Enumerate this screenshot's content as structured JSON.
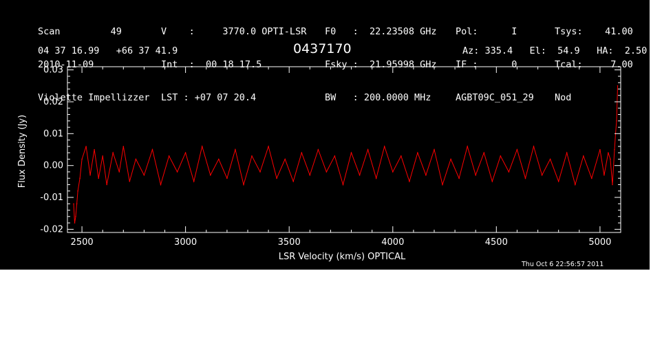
{
  "header": {
    "col1": [
      "Scan         49",
      "2010-11-09",
      "Violette Impellizzer"
    ],
    "col2": [
      "V    :     3770.0 OPTI-LSR",
      "Int  :  00 18 17.5",
      "LST : +07 07 20.4"
    ],
    "col3": [
      "F0   :  22.23508 GHz",
      "Fsky :  21.95998 GHz",
      "BW   : 200.0000 MHz"
    ],
    "col4": [
      "Pol:      I",
      "IF :      0",
      "AGBT09C_051_29"
    ],
    "col5": [
      "Tsys:    41.00",
      "Tcal:     7.00",
      "Nod"
    ],
    "coords": "04 37 16.99   +66 37 41.9",
    "source": "0437170",
    "azel": "Az: 335.4   El:  54.9   HA:  2.50",
    "timestamp": "Thu Oct  6 22:56:57 2011"
  },
  "colors": {
    "background": "#000000",
    "foreground": "#ffffff",
    "series": "#ff0000"
  },
  "chart_data": {
    "type": "line",
    "title": "0437170",
    "xlabel": "LSR Velocity (km/s) OPTICAL",
    "ylabel": "Flux Density (Jy)",
    "xlim": [
      2430,
      5100
    ],
    "ylim": [
      -0.021,
      0.031
    ],
    "xticks": [
      2500,
      3000,
      3500,
      4000,
      4500,
      5000
    ],
    "yticks": [
      -0.02,
      -0.01,
      0.0,
      0.01,
      0.02,
      0.03
    ],
    "xtick_labels": [
      "2500",
      "3000",
      "3500",
      "4000",
      "4500",
      "5000"
    ],
    "ytick_labels": [
      "-0.02",
      "-0.01",
      "0.00",
      "0.01",
      "0.02",
      "0.03"
    ],
    "grid": false,
    "series": [
      {
        "x": [
          2460,
          2465,
          2470,
          2475,
          2480,
          2490,
          2500,
          2520,
          2540,
          2560,
          2580,
          2600,
          2620,
          2650,
          2680,
          2700,
          2730,
          2760,
          2800,
          2840,
          2880,
          2920,
          2960,
          3000,
          3040,
          3080,
          3120,
          3160,
          3200,
          3240,
          3280,
          3320,
          3360,
          3400,
          3440,
          3480,
          3520,
          3560,
          3600,
          3640,
          3680,
          3720,
          3760,
          3800,
          3840,
          3880,
          3920,
          3960,
          4000,
          4040,
          4080,
          4120,
          4160,
          4200,
          4240,
          4280,
          4320,
          4360,
          4400,
          4440,
          4480,
          4520,
          4560,
          4600,
          4640,
          4680,
          4720,
          4760,
          4800,
          4840,
          4880,
          4920,
          4960,
          5000,
          5020,
          5040,
          5050,
          5060,
          5070,
          5075,
          5080,
          5085
        ],
        "y": [
          -0.012,
          -0.018,
          -0.016,
          -0.012,
          -0.008,
          -0.004,
          0.002,
          0.006,
          -0.003,
          0.005,
          -0.004,
          0.003,
          -0.006,
          0.004,
          -0.002,
          0.006,
          -0.005,
          0.002,
          -0.003,
          0.005,
          -0.006,
          0.003,
          -0.002,
          0.004,
          -0.005,
          0.006,
          -0.003,
          0.002,
          -0.004,
          0.005,
          -0.006,
          0.003,
          -0.002,
          0.006,
          -0.004,
          0.002,
          -0.005,
          0.004,
          -0.003,
          0.005,
          -0.002,
          0.003,
          -0.006,
          0.004,
          -0.003,
          0.005,
          -0.004,
          0.006,
          -0.002,
          0.003,
          -0.005,
          0.004,
          -0.003,
          0.005,
          -0.006,
          0.002,
          -0.004,
          0.006,
          -0.003,
          0.004,
          -0.005,
          0.003,
          -0.002,
          0.005,
          -0.004,
          0.006,
          -0.003,
          0.002,
          -0.005,
          0.004,
          -0.006,
          0.003,
          -0.004,
          0.005,
          -0.003,
          0.004,
          0.002,
          -0.006,
          0.005,
          0.01,
          0.014,
          0.025
        ]
      }
    ]
  }
}
